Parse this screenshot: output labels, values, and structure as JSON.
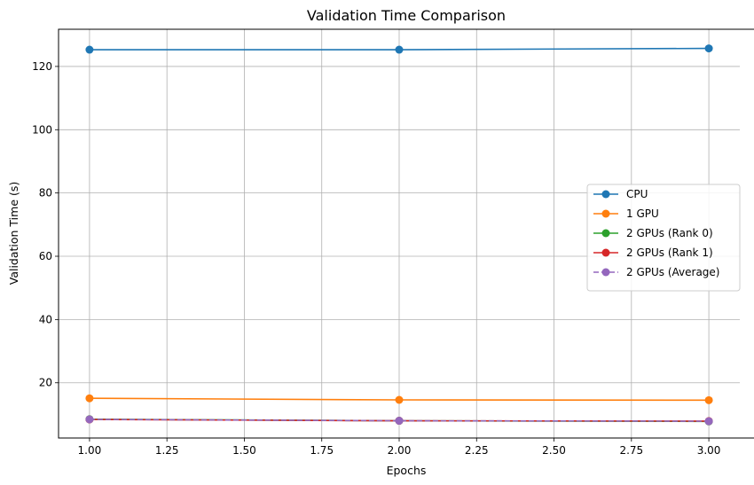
{
  "chart_data": {
    "type": "line",
    "title": "Validation Time Comparison",
    "xlabel": "Epochs",
    "ylabel": "Validation Time (s)",
    "x": [
      1,
      2,
      3
    ],
    "xlim": [
      0.9,
      3.1
    ],
    "ylim": [
      2.55,
      131.75
    ],
    "xticks": [
      "1.00",
      "1.25",
      "1.50",
      "1.75",
      "2.00",
      "2.25",
      "2.50",
      "2.75",
      "3.00"
    ],
    "yticks": [
      "20",
      "40",
      "60",
      "80",
      "100",
      "120"
    ],
    "grid": true,
    "legend_position": "center-right",
    "series": [
      {
        "name": "CPU",
        "values": [
          125.3,
          125.3,
          125.7
        ],
        "color": "#1f77b4",
        "linestyle": "solid"
      },
      {
        "name": "1 GPU",
        "values": [
          15.1,
          14.6,
          14.5
        ],
        "color": "#ff7f0e",
        "linestyle": "solid"
      },
      {
        "name": "2 GPUs (Rank 0)",
        "values": [
          8.5,
          8.0,
          7.8
        ],
        "color": "#2ca02c",
        "linestyle": "solid"
      },
      {
        "name": "2 GPUs (Rank 1)",
        "values": [
          8.4,
          8.0,
          7.9
        ],
        "color": "#d62728",
        "linestyle": "solid"
      },
      {
        "name": "2 GPUs (Average)",
        "values": [
          8.45,
          8.0,
          7.85
        ],
        "color": "#9467bd",
        "linestyle": "dashed"
      }
    ]
  }
}
